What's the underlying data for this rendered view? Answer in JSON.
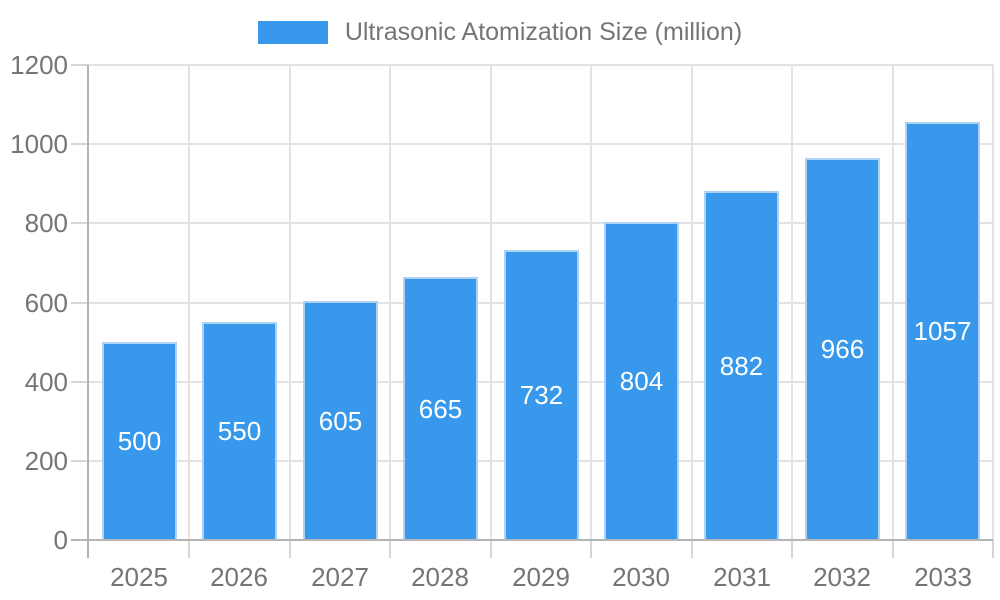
{
  "chart_data": {
    "type": "bar",
    "title": "Ultrasonic Atomization Size (million)",
    "legend_position": "top",
    "categories": [
      "2025",
      "2026",
      "2027",
      "2028",
      "2029",
      "2030",
      "2031",
      "2032",
      "2033"
    ],
    "series": [
      {
        "name": "Ultrasonic Atomization Size (million)",
        "values": [
          500,
          550,
          605,
          665,
          732,
          804,
          882,
          966,
          1057
        ]
      }
    ],
    "xlabel": "",
    "ylabel": "",
    "ylim": [
      0,
      1200
    ],
    "yticks": [
      0,
      200,
      400,
      600,
      800,
      1000,
      1200
    ],
    "grid": true,
    "colors": {
      "bar_fill": "#3899ec",
      "bar_border": "#aed2f4",
      "value_label": "#ffffff",
      "axis_label": "#757575",
      "gridline": "#e3e3e3",
      "tick": "#d6d6d6",
      "axis_line": "#b4b4b4",
      "background": "#ffffff"
    }
  }
}
